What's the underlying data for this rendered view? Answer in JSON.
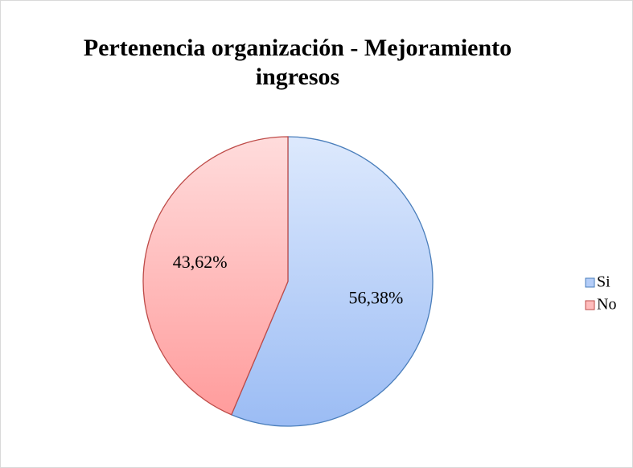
{
  "chart_data": {
    "type": "pie",
    "title": "Pertenencia organización - Mejoramiento ingresos",
    "categories": [
      "Si",
      "No"
    ],
    "values": [
      56.38,
      43.62
    ],
    "value_labels": [
      "56,38%",
      "43,62%"
    ],
    "colors": [
      "#b4cdf8",
      "#ffbcbc"
    ],
    "legend": "right"
  }
}
